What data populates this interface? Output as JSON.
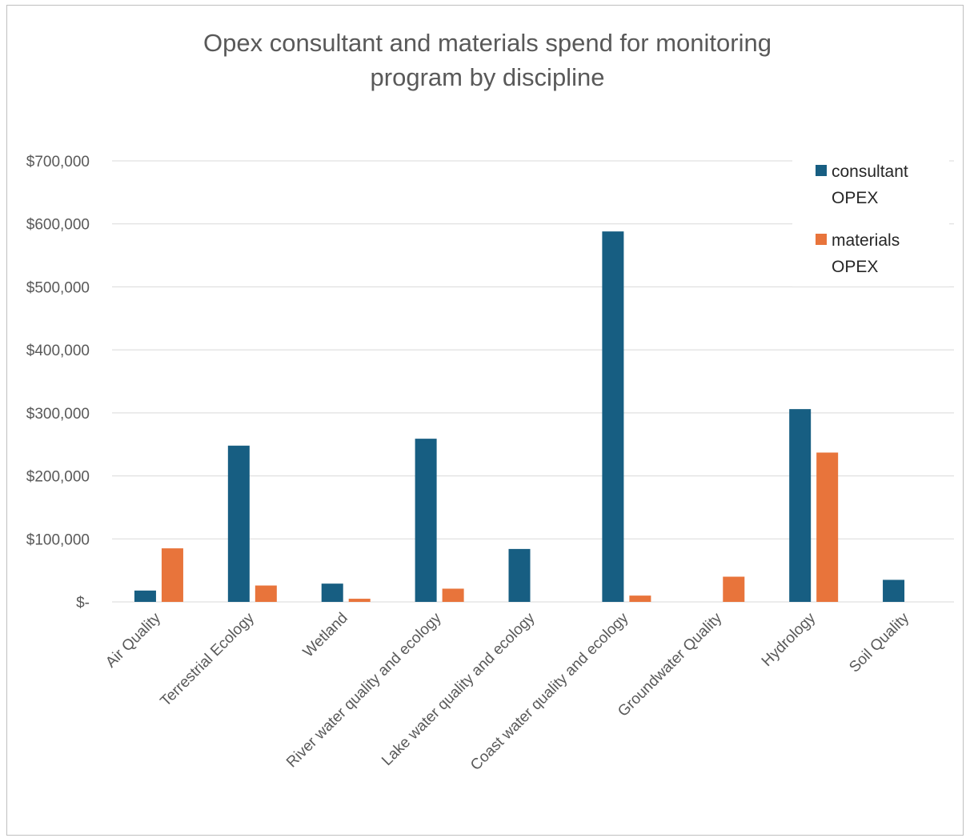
{
  "chart_data": {
    "type": "bar",
    "title": "Opex consultant and materials spend for monitoring program by discipline",
    "title_lines": [
      "Opex consultant and materials spend for monitoring",
      "program by discipline"
    ],
    "xlabel": "",
    "ylabel": "",
    "categories": [
      "Air Quality",
      "Terrestrial Ecology",
      "Wetland",
      "River water quality and ecology",
      "Lake water quality and ecology",
      "Coast water quality and ecology",
      "Groundwater Quality",
      "Hydrology",
      "Soil Quality"
    ],
    "series": [
      {
        "name": "consultant OPEX",
        "legend_lines": [
          "consultant",
          "OPEX"
        ],
        "color": "#175E82",
        "values": [
          18000,
          248000,
          29000,
          259000,
          84000,
          588000,
          0,
          306000,
          35000
        ]
      },
      {
        "name": "materials OPEX",
        "legend_lines": [
          "materials",
          "OPEX"
        ],
        "color": "#E8743B",
        "values": [
          85000,
          26000,
          5000,
          21000,
          0,
          10000,
          40000,
          237000,
          0
        ]
      }
    ],
    "ylim": [
      0,
      700000
    ],
    "y_ticks": [
      {
        "value": 700000,
        "label": "$700,000"
      },
      {
        "value": 600000,
        "label": "$600,000"
      },
      {
        "value": 500000,
        "label": "$500,000"
      },
      {
        "value": 400000,
        "label": "$400,000"
      },
      {
        "value": 300000,
        "label": "$300,000"
      },
      {
        "value": 200000,
        "label": "$200,000"
      },
      {
        "value": 100000,
        "label": "$100,000"
      },
      {
        "value": 0,
        "label": "$-"
      }
    ],
    "grid": true,
    "legend_position": "top-right",
    "colors": {
      "gridline": "#d9d9d9",
      "axis_text": "#595959"
    }
  }
}
